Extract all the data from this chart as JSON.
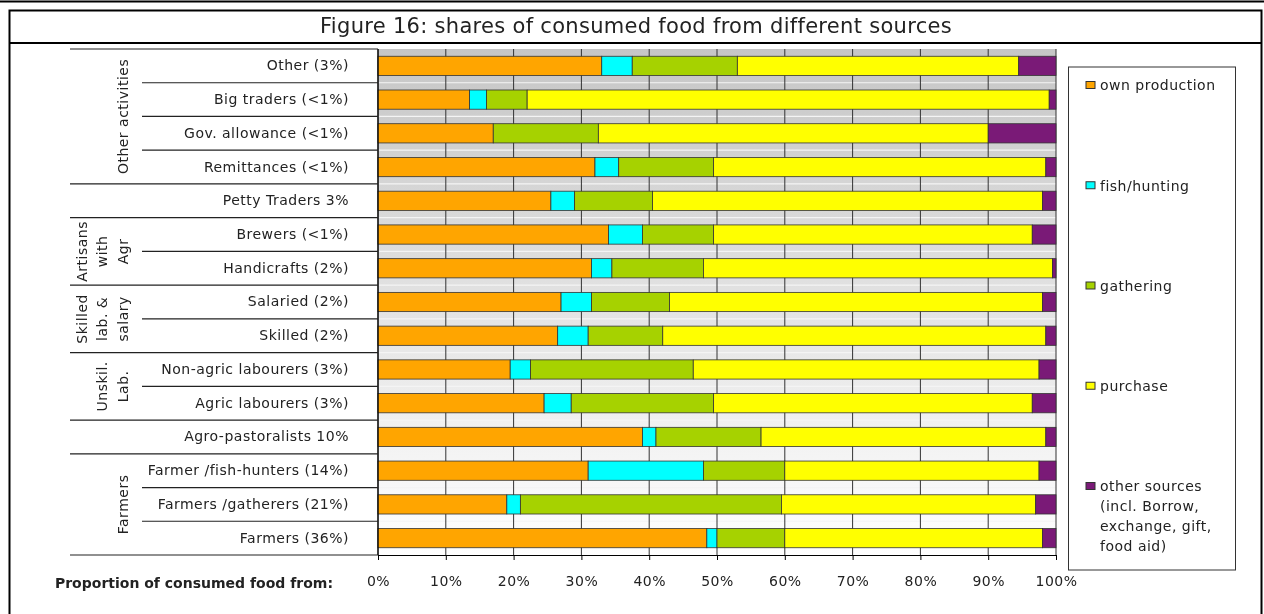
{
  "chart_data": {
    "type": "bar",
    "orientation": "horizontal",
    "stacked": true,
    "title": "Figure 16: shares of consumed food from different sources",
    "xlabel": "Proportion of consumed food from:",
    "categories": [
      "Other (3%)",
      "Big traders (<1%)",
      "Gov. allowance (<1%)",
      "Remittances (<1%)",
      "Petty Traders 3%",
      "Brewers (<1%)",
      "Handicrafts (2%)",
      "Salaried (2%)",
      "Skilled (2%)",
      "Non-agric labourers (3%)",
      "Agric labourers (3%)",
      "Agro-pastoralists 10%",
      "Farmer /fish-hunters (14%)",
      "Farmers /gatherers (21%)",
      "Farmers (36%)"
    ],
    "series": [
      {
        "name": "own production",
        "color": "#ffa500",
        "values": [
          33,
          13.5,
          17,
          32,
          25.5,
          34,
          31.5,
          27,
          26.5,
          19.5,
          24.5,
          39,
          31,
          19,
          48.5
        ]
      },
      {
        "name": "fish/hunting",
        "color": "#00ffff",
        "values": [
          4.5,
          2.5,
          0,
          3.5,
          3.5,
          5,
          3,
          4.5,
          4.5,
          3,
          4,
          2,
          17,
          2,
          1.5
        ]
      },
      {
        "name": "gathering",
        "color": "#a6d200",
        "values": [
          15.5,
          6,
          15.5,
          14,
          11.5,
          10.5,
          13.5,
          11.5,
          11,
          24,
          21,
          15.5,
          12,
          38.5,
          10
        ]
      },
      {
        "name": "purchase",
        "color": "#ffff00",
        "values": [
          41.5,
          77,
          57.5,
          49,
          57.5,
          47,
          51.5,
          55,
          56.5,
          51,
          47,
          42,
          37.5,
          37.5,
          38
        ]
      },
      {
        "name": "other sources (incl. Borrow, exchange, gift, food aid)",
        "color": "#7a1a77",
        "values": [
          5.5,
          1,
          10,
          1.5,
          2,
          3.5,
          0.5,
          2,
          1.5,
          2.5,
          3.5,
          1.5,
          2.5,
          3,
          2
        ]
      }
    ],
    "xlim": [
      0,
      100
    ],
    "xticks": [
      {
        "value": 0,
        "label": "0%"
      },
      {
        "value": 10,
        "label": "10%"
      },
      {
        "value": 20,
        "label": "20%"
      },
      {
        "value": 30,
        "label": "30%"
      },
      {
        "value": 40,
        "label": "40%"
      },
      {
        "value": 50,
        "label": "50%"
      },
      {
        "value": 60,
        "label": "60%"
      },
      {
        "value": 70,
        "label": "70%"
      },
      {
        "value": 80,
        "label": "80%"
      },
      {
        "value": 90,
        "label": "90%"
      },
      {
        "value": 100,
        "label": "100%"
      }
    ],
    "grid": true,
    "legend": "right",
    "annotations": [
      "Other activities",
      "Artisans with Agr",
      "Skilled lab. & salary",
      "Unskil. Lab.",
      "Farmers"
    ]
  }
}
